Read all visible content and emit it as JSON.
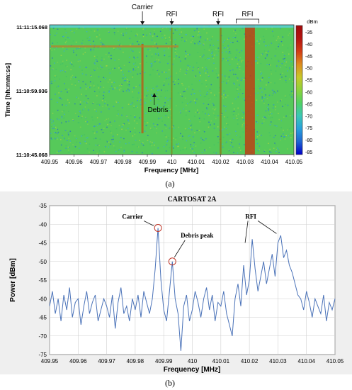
{
  "chart_data": [
    {
      "type": "heatmap",
      "panel_label": "(a)",
      "xlabel": "Frequency [MHz]",
      "ylabel": "Time [hh:mm:ss]",
      "xlim": [
        409.95,
        410.05
      ],
      "x_ticks": [
        "409.95",
        "409.96",
        "409.97",
        "409.98",
        "409.99",
        "410",
        "410.01",
        "410.02",
        "410.03",
        "410.04",
        "410.05"
      ],
      "y_ticks": [
        "11:11:15.068",
        "11:10:59.936",
        "11:10:45.068"
      ],
      "colorbar": {
        "unit": "dBm",
        "range": [
          -85,
          -30
        ],
        "ticks": [
          "-35",
          "-40",
          "-45",
          "-50",
          "-55",
          "-60",
          "-65",
          "-70",
          "-75",
          "-80",
          "-85"
        ],
        "colors": [
          "#0000c8",
          "#1e64d2",
          "#28a0dc",
          "#3cc8b4",
          "#50d264",
          "#8cd23c",
          "#c8c828",
          "#dc8c1e",
          "#d23c14",
          "#b41410",
          "#a00a0a"
        ]
      },
      "lines": [
        {
          "freq": 409.988,
          "level": -45
        },
        {
          "freq": 410.0,
          "level": -52
        },
        {
          "freq": 410.02,
          "level": -48
        },
        {
          "freq": 410.032,
          "level": -42
        }
      ],
      "annotations": [
        {
          "text": "Carrier",
          "freq": 409.988
        },
        {
          "text": "RFI",
          "freq": 410.0
        },
        {
          "text": "RFI",
          "freq": 410.019
        },
        {
          "text": "RFI",
          "freq": 410.031
        },
        {
          "text": "Debris",
          "freq": 409.992
        }
      ]
    },
    {
      "type": "line",
      "panel_label": "(b)",
      "title": "CARTOSAT 2A",
      "xlabel": "Frequency [MHz]",
      "ylabel": "Power [dBm]",
      "xlim": [
        409.95,
        410.05
      ],
      "ylim": [
        -75,
        -35
      ],
      "x_ticks": [
        "409.95",
        "409.96",
        "409.97",
        "409.98",
        "409.99",
        "410",
        "410.01",
        "410.02",
        "410.03",
        "410.04",
        "410.05"
      ],
      "y_ticks": [
        "-35",
        "-40",
        "-45",
        "-50",
        "-55",
        "-60",
        "-65",
        "-70",
        "-75"
      ],
      "grid": true,
      "series": [
        {
          "color": "#4a72b8",
          "x": [
            409.95,
            409.951,
            409.952,
            409.953,
            409.954,
            409.955,
            409.956,
            409.957,
            409.958,
            409.959,
            409.96,
            409.961,
            409.962,
            409.963,
            409.964,
            409.965,
            409.966,
            409.967,
            409.968,
            409.969,
            409.97,
            409.971,
            409.972,
            409.973,
            409.974,
            409.975,
            409.976,
            409.977,
            409.978,
            409.979,
            409.98,
            409.981,
            409.982,
            409.983,
            409.984,
            409.985,
            409.986,
            409.987,
            409.988,
            409.989,
            409.99,
            409.991,
            409.992,
            409.993,
            409.994,
            409.995,
            409.996,
            409.997,
            409.998,
            409.999,
            410.0,
            410.001,
            410.002,
            410.003,
            410.004,
            410.005,
            410.006,
            410.007,
            410.008,
            410.009,
            410.01,
            410.011,
            410.012,
            410.013,
            410.014,
            410.015,
            410.016,
            410.017,
            410.018,
            410.019,
            410.02,
            410.021,
            410.022,
            410.023,
            410.024,
            410.025,
            410.026,
            410.027,
            410.028,
            410.029,
            410.03,
            410.031,
            410.032,
            410.033,
            410.034,
            410.035,
            410.036,
            410.037,
            410.038,
            410.039,
            410.04,
            410.041,
            410.042,
            410.043,
            410.044,
            410.045,
            410.046,
            410.047,
            410.048,
            410.049,
            410.05
          ],
          "y": [
            -62,
            -58,
            -64,
            -60,
            -66,
            -59,
            -63,
            -57,
            -65,
            -61,
            -60,
            -67,
            -62,
            -58,
            -64,
            -61,
            -59,
            -66,
            -63,
            -60,
            -62,
            -65,
            -59,
            -68,
            -61,
            -57,
            -64,
            -62,
            -66,
            -60,
            -63,
            -59,
            -65,
            -58,
            -61,
            -64,
            -60,
            -52,
            -41,
            -55,
            -63,
            -66,
            -58,
            -50,
            -60,
            -64,
            -74,
            -62,
            -59,
            -66,
            -63,
            -58,
            -61,
            -65,
            -60,
            -57,
            -63,
            -59,
            -66,
            -61,
            -62,
            -58,
            -64,
            -67,
            -70,
            -60,
            -56,
            -62,
            -51,
            -59,
            -55,
            -44,
            -52,
            -58,
            -54,
            -50,
            -56,
            -52,
            -48,
            -54,
            -45,
            -43,
            -49,
            -47,
            -51,
            -53,
            -56,
            -59,
            -60,
            -63,
            -58,
            -61,
            -65,
            -60,
            -62,
            -64,
            -59,
            -66,
            -61,
            -63,
            -60
          ]
        }
      ],
      "annotations": [
        {
          "text": "Carrier",
          "x": 409.988,
          "y": -41
        },
        {
          "text": "Debris peak",
          "x": 409.993,
          "y": -50
        },
        {
          "text": "RFI",
          "x": 410.03,
          "y": -43
        }
      ]
    }
  ]
}
